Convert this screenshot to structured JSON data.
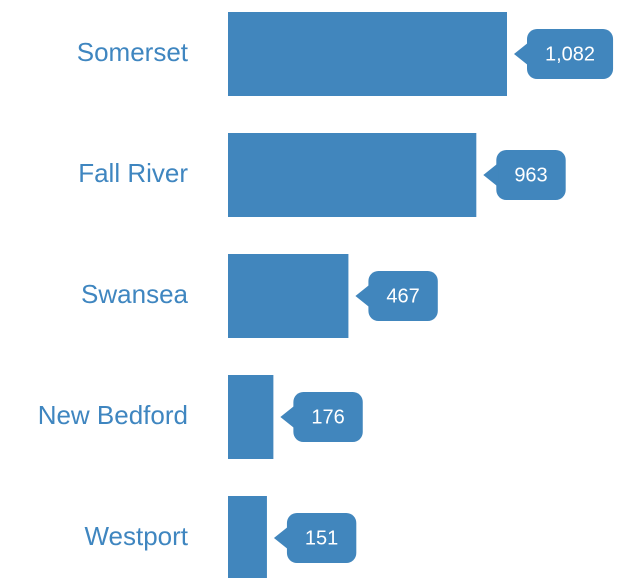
{
  "chart_data": {
    "type": "bar",
    "orientation": "horizontal",
    "categories": [
      "Somerset",
      "Fall River",
      "Swansea",
      "New Bedford",
      "Westport"
    ],
    "values": [
      1082,
      963,
      467,
      176,
      151
    ],
    "value_labels": [
      "1,082",
      "963",
      "467",
      "176",
      "151"
    ],
    "color": "#4186bd"
  }
}
